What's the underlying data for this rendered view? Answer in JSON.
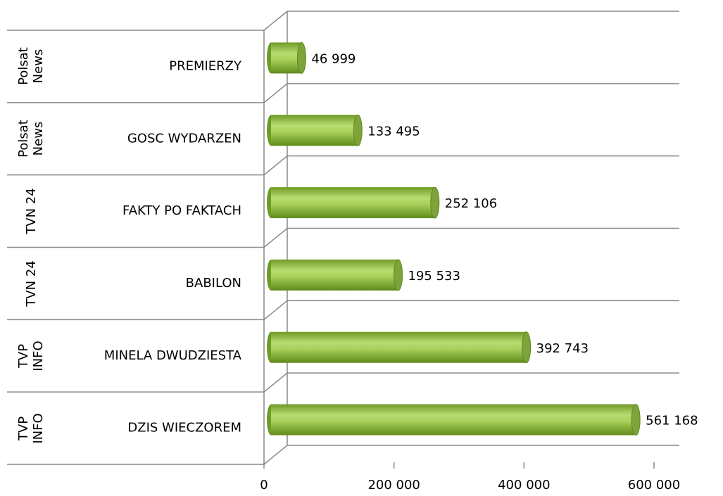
{
  "chart_data": {
    "type": "bar",
    "orientation": "horizontal",
    "categories": [
      "PREMIERZY",
      "GOSC WYDARZEN",
      "FAKTY PO FAKTACH",
      "BABILON",
      "MINELA DWUDZIESTA",
      "DZIS WIECZOREM"
    ],
    "groups": [
      "Polsat News",
      "Polsat News",
      "TVN 24",
      "TVN 24",
      "TVP INFO",
      "TVP INFO"
    ],
    "values": [
      46999,
      133495,
      252106,
      195533,
      392743,
      561168
    ],
    "value_labels": [
      "46 999",
      "133 495",
      "252 106",
      "195 533",
      "392 743",
      "561 168"
    ],
    "color": "#9acd32",
    "xlim": [
      0,
      600000
    ],
    "xticks": [
      0,
      {
        "value": 200000,
        "label": "200 000"
      },
      {
        "value": 400000,
        "label": "400 000"
      },
      {
        "value": 600000,
        "label": "600 000"
      }
    ]
  }
}
